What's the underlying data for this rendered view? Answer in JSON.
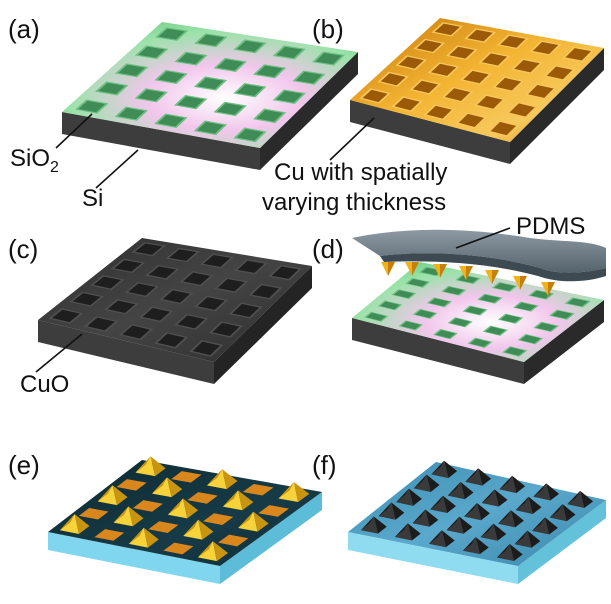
{
  "panels": [
    {
      "id": "a",
      "label": "(a)"
    },
    {
      "id": "b",
      "label": "(b)"
    },
    {
      "id": "c",
      "label": "(c)"
    },
    {
      "id": "d",
      "label": "(d)"
    },
    {
      "id": "e",
      "label": "(e)"
    },
    {
      "id": "f",
      "label": "(f)"
    }
  ],
  "annotations": {
    "sio2_main": "SiO",
    "sio2_sub": "2",
    "si": "Si",
    "cu_line1": "Cu with spatially",
    "cu_line2": "varying thickness",
    "pdms": "PDMS",
    "cuo": "CuO"
  },
  "colors": {
    "substrate_side": "#3a3a3a",
    "oxide_green": "#7fd89a",
    "oxide_pink": "#f2c6ec",
    "copper_gold": "#e69a1c",
    "cuo_dark": "#3b3b3b",
    "pdms_gray": "#6f7f8a",
    "glass_blue": "#8fdcf0",
    "top_navy": "#13323d",
    "pyramid_gold": "#f1c21a",
    "pyramid_dark": "#2c2c2c"
  }
}
